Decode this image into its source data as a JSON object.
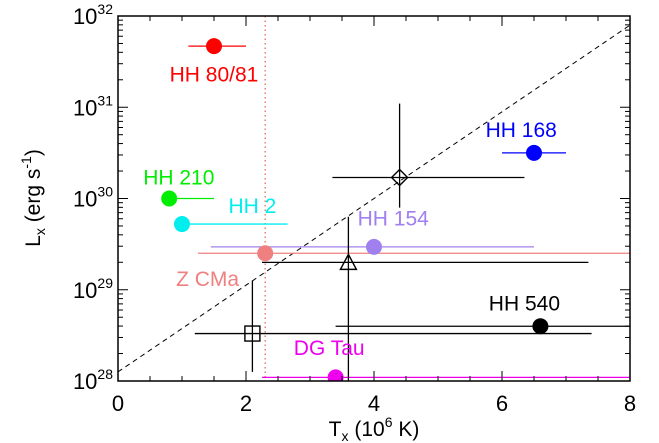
{
  "chart_data": {
    "type": "scatter",
    "xlabel": "T",
    "xlabel_sub": "x",
    "xlabel_units_prefix": " (10",
    "xlabel_units_exp": "6",
    "xlabel_units_suffix": " K)",
    "ylabel": "L",
    "ylabel_sub": "x",
    "ylabel_units_prefix": " (erg s",
    "ylabel_units_exp": "-1",
    "ylabel_units_suffix": ")",
    "xlim": [
      0,
      8
    ],
    "ylim": [
      28,
      32
    ],
    "y_scale": "log",
    "grid": false,
    "x_ticks": [
      {
        "value": 0,
        "label": "0"
      },
      {
        "value": 2,
        "label": "2"
      },
      {
        "value": 4,
        "label": "4"
      },
      {
        "value": 6,
        "label": "6"
      },
      {
        "value": 8,
        "label": "8"
      }
    ],
    "y_ticks": [
      {
        "value": 28,
        "base": "10",
        "exp": "28"
      },
      {
        "value": 29,
        "base": "10",
        "exp": "29"
      },
      {
        "value": 30,
        "base": "10",
        "exp": "30"
      },
      {
        "value": 31,
        "base": "10",
        "exp": "31"
      },
      {
        "value": 32,
        "base": "10",
        "exp": "32"
      }
    ],
    "diagonal_line": {
      "style": "dashed",
      "color": "#000000",
      "from": [
        0,
        28.1
      ],
      "to": [
        8,
        31.9
      ]
    },
    "vertical_line": {
      "style": "dotted",
      "color": "#e8836a",
      "x": 2.3,
      "y_from": 28,
      "y_to": 32
    },
    "points": [
      {
        "label": "HH 80/81",
        "color": "#ff0000",
        "marker": "filled-circle",
        "x": 1.5,
        "log_y": 31.67,
        "x_err": [
          1.1,
          2.0
        ],
        "y_err": null
      },
      {
        "label": "HH 168",
        "color": "#0000ff",
        "marker": "filled-circle",
        "x": 6.5,
        "log_y": 30.5,
        "x_err": [
          6.0,
          7.0
        ],
        "y_err": null
      },
      {
        "label": "HH 210",
        "color": "#00ee00",
        "marker": "filled-circle",
        "x": 0.8,
        "log_y": 30.0,
        "x_err": [
          0.8,
          1.5
        ],
        "y_err": null
      },
      {
        "label": "HH 2",
        "color": "#00eeee",
        "marker": "filled-circle",
        "x": 1.0,
        "log_y": 29.72,
        "x_err": [
          1.0,
          2.65
        ],
        "y_err": null
      },
      {
        "label": "HH 154",
        "color": "#a080ee",
        "marker": "filled-circle",
        "x": 4.0,
        "log_y": 29.47,
        "x_err": [
          1.45,
          6.5
        ],
        "y_err": null
      },
      {
        "label": "Z CMa",
        "color": "#f08080",
        "marker": "filled-circle",
        "x": 2.3,
        "log_y": 29.4,
        "x_err": [
          1.25,
          8.0
        ],
        "y_err": null
      },
      {
        "label": "HH 540",
        "color": "#000000",
        "marker": "filled-circle",
        "x": 6.6,
        "log_y": 28.6,
        "x_err": [
          3.4,
          8.0
        ],
        "y_err": null
      },
      {
        "label": "DG Tau",
        "color": "#ee00ee",
        "marker": "filled-circle",
        "x": 3.4,
        "log_y": 28.04,
        "x_err": [
          2.25,
          8.0
        ],
        "y_err": null
      },
      {
        "label": "",
        "color": "#000000",
        "marker": "open-diamond",
        "x": 4.4,
        "log_y": 30.23,
        "x_err": [
          3.35,
          6.35
        ],
        "y_err": [
          29.9,
          31.04
        ]
      },
      {
        "label": "",
        "color": "#000000",
        "marker": "open-triangle",
        "x": 3.6,
        "log_y": 29.3,
        "x_err": [
          2.25,
          7.35
        ],
        "y_err": [
          28.0,
          29.8
        ]
      },
      {
        "label": "",
        "color": "#000000",
        "marker": "open-square",
        "x": 2.1,
        "log_y": 28.52,
        "x_err": [
          1.2,
          7.4
        ],
        "y_err": [
          28.1,
          29.1
        ]
      }
    ],
    "labels": [
      {
        "text": "HH 80/81",
        "color": "#ff0000",
        "x": 1.5,
        "log_y": 31.36
      },
      {
        "text": "HH 168",
        "color": "#0000ff",
        "x": 6.3,
        "log_y": 30.75
      },
      {
        "text": "HH 210",
        "color": "#00ee00",
        "x": 0.95,
        "log_y": 30.23
      },
      {
        "text": "HH 2",
        "color": "#00eeee",
        "x": 2.1,
        "log_y": 29.92
      },
      {
        "text": "HH 154",
        "color": "#a080ee",
        "x": 4.3,
        "log_y": 29.78
      },
      {
        "text": "Z CMa",
        "color": "#f08080",
        "x": 1.4,
        "log_y": 29.12
      },
      {
        "text": "HH 540",
        "color": "#000000",
        "x": 6.35,
        "log_y": 28.85
      },
      {
        "text": "DG Tau",
        "color": "#ee00ee",
        "x": 3.3,
        "log_y": 28.36
      }
    ]
  }
}
